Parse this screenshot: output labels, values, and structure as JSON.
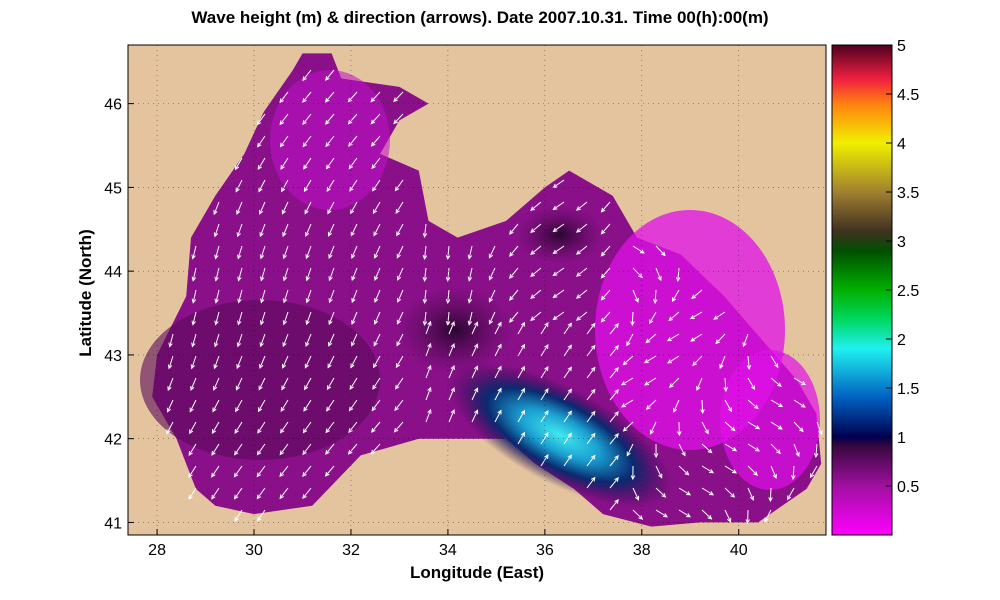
{
  "title": "Wave height (m) & direction (arrows). Date 2007.10.31. Time 00(h):00(m)",
  "chart_data": {
    "type": "heatmap",
    "title": "Wave height (m) & direction (arrows). Date 2007.10.31. Time 00(h):00(m)",
    "xlabel": "Longitude (East)",
    "ylabel": "Latitude (North)",
    "xlim": [
      27.4,
      41.8
    ],
    "ylim": [
      40.85,
      46.7
    ],
    "x_ticks": [
      28,
      30,
      32,
      34,
      36,
      38,
      40
    ],
    "y_ticks": [
      41,
      42,
      43,
      44,
      45,
      46
    ],
    "grid": true,
    "colorbar": {
      "label": "",
      "range": [
        0,
        5
      ],
      "ticks": [
        0.5,
        1,
        1.5,
        2,
        2.5,
        3,
        3.5,
        4,
        4.5,
        5
      ],
      "placement": "right"
    },
    "colors": {
      "land": "#e3c49f",
      "sea_low": "#ff00ff",
      "sea_mid": "#6a0a6a",
      "peak_core": "#30dcec"
    },
    "max_wave_region": {
      "lon_range": [
        34.2,
        38.6
      ],
      "lat_range": [
        41.2,
        42.8
      ],
      "peak_height_m": 1.6
    },
    "arrow_direction_note": "vectors show wave propagation direction"
  }
}
